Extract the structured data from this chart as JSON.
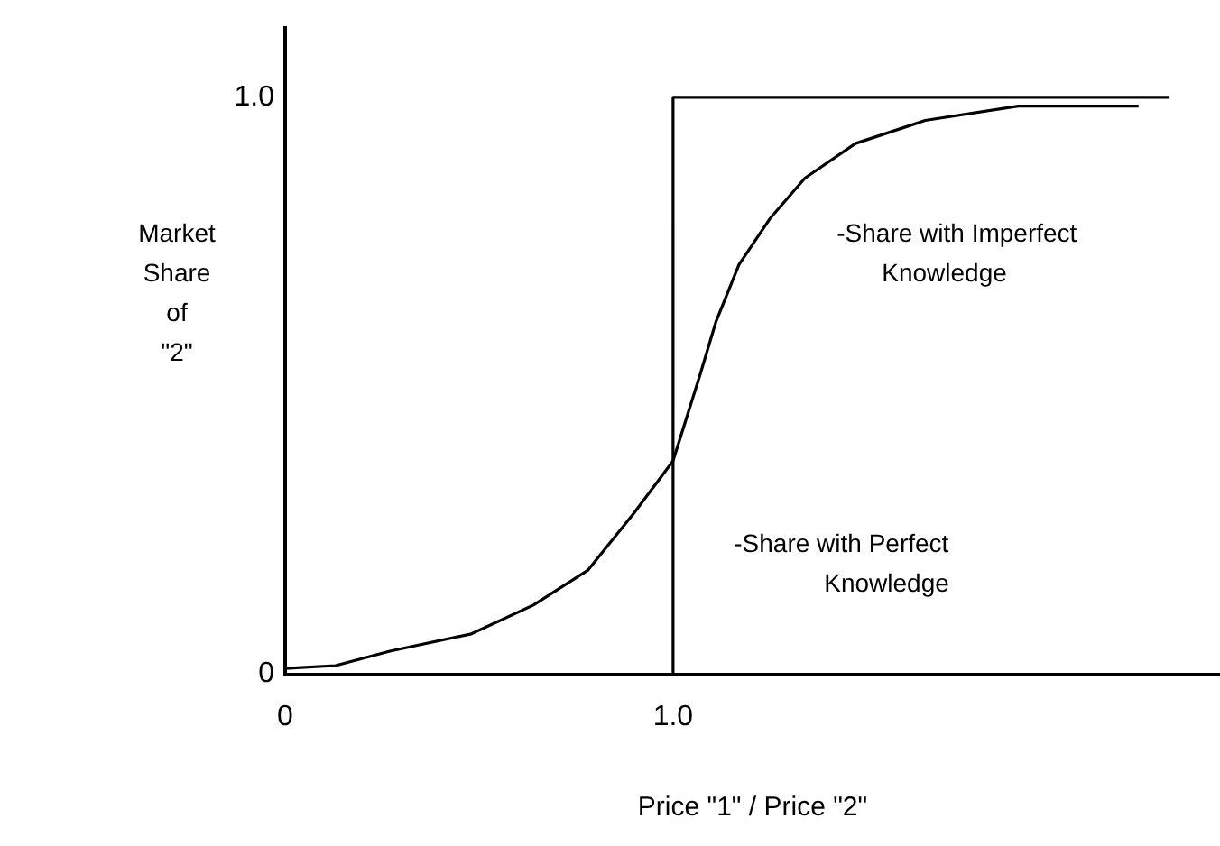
{
  "chart_data": {
    "type": "line",
    "xlabel": "Price \"1\" / Price \"2\"",
    "ylabel": "Market Share of \"2\"",
    "xlim": [
      0,
      2.41
    ],
    "ylim": [
      0,
      1.12
    ],
    "xticks": [
      0,
      {
        "value": 1,
        "label": "1.0"
      }
    ],
    "yticks": [
      0,
      {
        "value": 1,
        "label": "1.0"
      }
    ],
    "grid": false,
    "legend": false,
    "marker": "none",
    "line_style": "solid",
    "series": [
      {
        "name": "-Share with Imperfect Knowledge",
        "type": "line",
        "color": "#000000",
        "x": [
          0,
          0.13,
          0.27,
          0.48,
          0.64,
          0.78,
          0.9,
          1.0,
          1.07,
          1.11,
          1.17,
          1.25,
          1.34,
          1.47,
          1.65,
          1.89,
          2.2
        ],
        "values": [
          0.01,
          0.015,
          0.04,
          0.07,
          0.12,
          0.18,
          0.28,
          0.37,
          0.52,
          0.61,
          0.71,
          0.79,
          0.86,
          0.92,
          0.96,
          0.985,
          0.985
        ]
      },
      {
        "name": "-Share with Perfect Knowledge",
        "type": "step",
        "color": "#000000",
        "x": [
          0,
          1.0,
          2.28
        ],
        "values": [
          0,
          1,
          1
        ]
      }
    ]
  }
}
